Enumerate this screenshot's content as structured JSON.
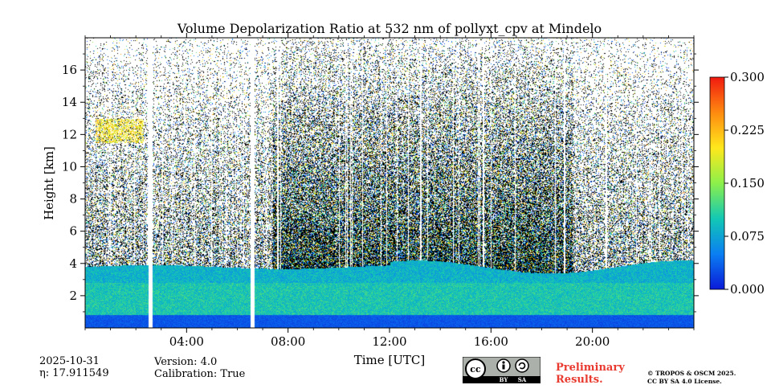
{
  "chart_data": {
    "type": "heatmap",
    "title": "Volume Depolarization Ratio at 532 nm of pollyxt_cpv at Mindelo",
    "xlabel": "Time [UTC]",
    "ylabel": "Height [km]",
    "xlim_hours": [
      0,
      24
    ],
    "ylim_km": [
      0,
      18
    ],
    "x_ticks": [
      {
        "hour": 4,
        "label": "04:00"
      },
      {
        "hour": 8,
        "label": "08:00"
      },
      {
        "hour": 12,
        "label": "12:00"
      },
      {
        "hour": 16,
        "label": "16:00"
      },
      {
        "hour": 20,
        "label": "20:00"
      }
    ],
    "y_ticks": [
      {
        "value": 2,
        "label": "2"
      },
      {
        "value": 4,
        "label": "4"
      },
      {
        "value": 6,
        "label": "6"
      },
      {
        "value": 8,
        "label": "8"
      },
      {
        "value": 10,
        "label": "10"
      },
      {
        "value": 12,
        "label": "12"
      },
      {
        "value": 14,
        "label": "14"
      },
      {
        "value": 16,
        "label": "16"
      }
    ],
    "colorbar": {
      "min": 0.0,
      "max": 0.3,
      "ticks": [
        {
          "value": 0.0,
          "label": "0.000"
        },
        {
          "value": 0.075,
          "label": "0.075"
        },
        {
          "value": 0.15,
          "label": "0.150"
        },
        {
          "value": 0.225,
          "label": "0.225"
        },
        {
          "value": 0.3,
          "label": "0.300"
        }
      ],
      "colormap": [
        "#0a1ad8",
        "#0a7ff2",
        "#12c8b4",
        "#8cf04a",
        "#ffe81c",
        "#ff8a10",
        "#f01a10"
      ]
    },
    "layers": [
      {
        "name": "near-surface layer",
        "height_km": [
          0,
          0.8
        ],
        "depol": 0.03
      },
      {
        "name": "dust layer",
        "height_km": [
          0.8,
          3.8
        ],
        "depol": 0.1
      },
      {
        "name": "upper noise",
        "height_km": [
          3.8,
          18
        ],
        "depol": "noise"
      },
      {
        "name": "cirrus patch",
        "time_hours": [
          0.4,
          2.3
        ],
        "height_km": [
          11.5,
          13
        ],
        "depol": 0.2
      }
    ],
    "gaps_hours": [
      [
        2.5,
        2.65
      ],
      [
        6.5,
        6.65
      ]
    ]
  },
  "footer": {
    "date": "2025-10-31",
    "eta": "η: 17.911549",
    "version": "Version: 4.0",
    "calibration": "Calibration: True",
    "preliminary_line1": "Preliminary",
    "preliminary_line2": "Results.",
    "copyright_line1": "© TROPOS & OSCM 2025.",
    "copyright_line2": "CC BY SA 4.0 License.",
    "license_badge": {
      "cc": "cc",
      "by": "BY",
      "sa": "SA"
    }
  }
}
